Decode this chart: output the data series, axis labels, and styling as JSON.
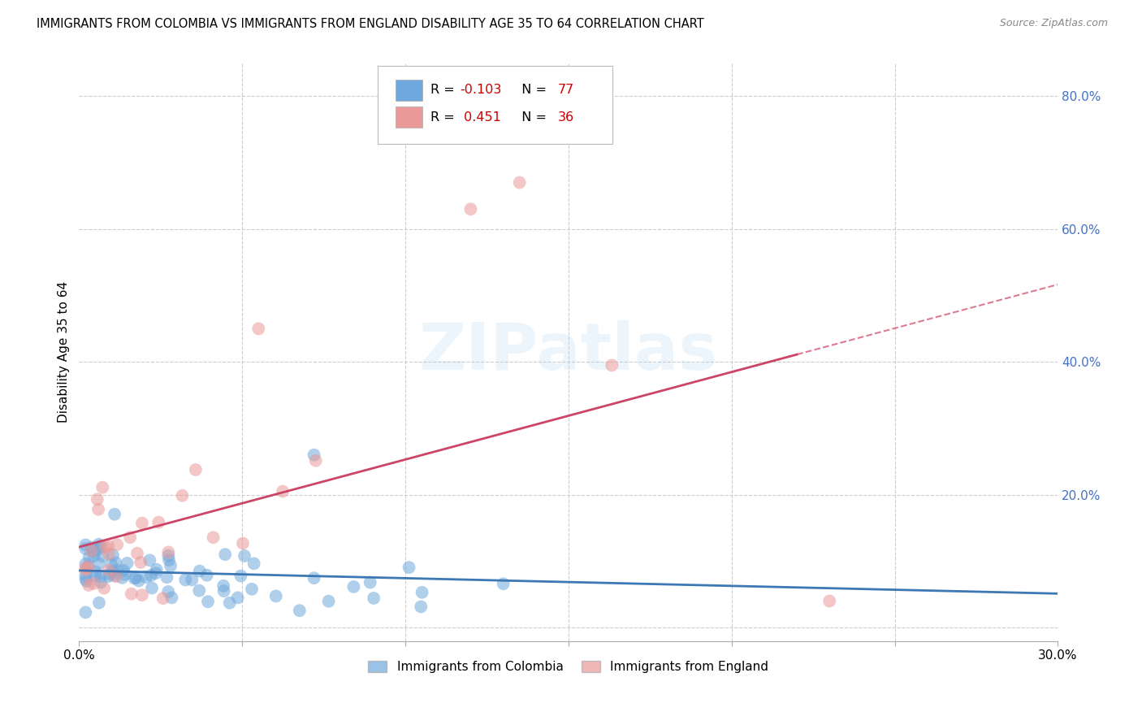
{
  "title": "IMMIGRANTS FROM COLOMBIA VS IMMIGRANTS FROM ENGLAND DISABILITY AGE 35 TO 64 CORRELATION CHART",
  "source": "Source: ZipAtlas.com",
  "ylabel": "Disability Age 35 to 64",
  "xlim": [
    0.0,
    0.3
  ],
  "ylim": [
    -0.02,
    0.85
  ],
  "colombia_R": -0.103,
  "colombia_N": 77,
  "england_R": 0.451,
  "england_N": 36,
  "colombia_color": "#6fa8dc",
  "england_color": "#ea9999",
  "colombia_line_color": "#3d78b5",
  "england_line_color": "#cc4466",
  "background_color": "#ffffff",
  "grid_color": "#cccccc",
  "legend_label_colombia": "Immigrants from Colombia",
  "legend_label_england": "Immigrants from England",
  "R_N_color": "#cc0000",
  "right_axis_color": "#4472c4"
}
